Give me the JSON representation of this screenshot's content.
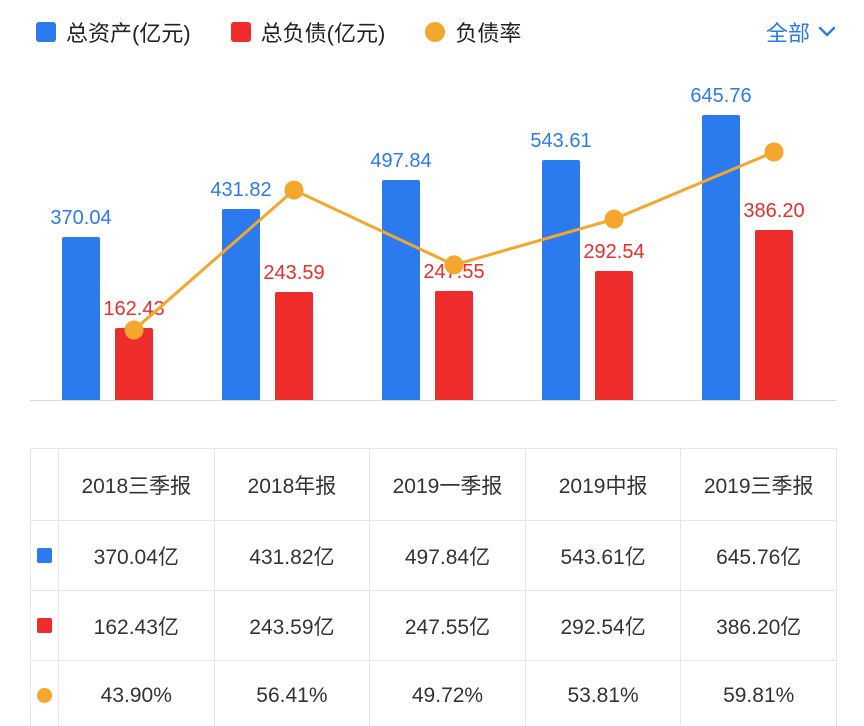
{
  "legend": {
    "items": [
      {
        "label": "总资产(亿元)",
        "shape": "square",
        "color": "#2b7bee"
      },
      {
        "label": "总负债(亿元)",
        "shape": "square",
        "color": "#ee2c2c"
      },
      {
        "label": "负债率",
        "shape": "circle",
        "color": "#f5a62c"
      }
    ],
    "filter_label": "全部"
  },
  "chart_data": {
    "type": "bar",
    "categories": [
      "2018三季报",
      "2018年报",
      "2019一季报",
      "2019中报",
      "2019三季报"
    ],
    "series": [
      {
        "name": "总资产(亿元)",
        "type": "bar",
        "color": "#2b7bee",
        "values": [
          370.04,
          431.82,
          497.84,
          543.61,
          645.76
        ]
      },
      {
        "name": "总负债(亿元)",
        "type": "bar",
        "color": "#ee2c2c",
        "values": [
          162.43,
          243.59,
          247.55,
          292.54,
          386.2
        ]
      },
      {
        "name": "负债率",
        "type": "line",
        "color": "#f5a62c",
        "unit": "%",
        "values": [
          43.9,
          56.41,
          49.72,
          53.81,
          59.81
        ]
      }
    ],
    "value_labels_visible": true,
    "legend_position": "top",
    "grid": false
  },
  "table": {
    "headers": [
      "2018三季报",
      "2018年报",
      "2019一季报",
      "2019中报",
      "2019三季报"
    ],
    "rows": [
      {
        "icon": "assets-series-icon",
        "shape": "square",
        "color": "#2b7bee",
        "values": [
          "370.04亿",
          "431.82亿",
          "497.84亿",
          "543.61亿",
          "645.76亿"
        ]
      },
      {
        "icon": "liabilities-series-icon",
        "shape": "square",
        "color": "#ee2c2c",
        "values": [
          "162.43亿",
          "243.59亿",
          "247.55亿",
          "292.54亿",
          "386.20亿"
        ]
      },
      {
        "icon": "ratio-series-icon",
        "shape": "circle",
        "color": "#f5a62c",
        "values": [
          "43.90%",
          "56.41%",
          "49.72%",
          "53.81%",
          "59.81%"
        ]
      }
    ]
  },
  "colors": {
    "assets": "#2b7bee",
    "liabilities": "#ee2c2c",
    "ratio": "#f5a62c",
    "accent_text": "#2b7bee"
  }
}
